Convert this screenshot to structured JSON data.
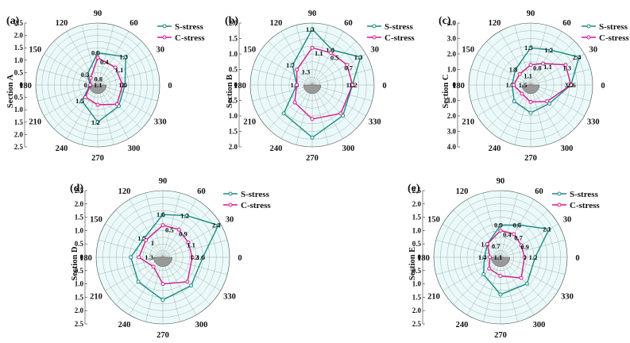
{
  "chart_data": [
    {
      "type": "polar-line",
      "panel_label": "(a)",
      "section_title": "Section A",
      "radial_range": [
        0,
        2.5
      ],
      "radial_ticks": [
        "2.5",
        "2.0",
        "1.5",
        "1.0",
        "0.5",
        "0",
        "0.5",
        "1.0",
        "1.5",
        "2.0",
        "2.5"
      ],
      "angle_ticks": [
        "0",
        "30",
        "60",
        "90",
        "120",
        "150",
        "180",
        "210",
        "240",
        "270",
        "300",
        "330"
      ],
      "legend": [
        "S-stress",
        "C-stress"
      ],
      "series": [
        {
          "name": "S-stress",
          "points": [
            [
              0,
              1.1
            ],
            [
              45,
              1.6
            ],
            [
              90,
              1.3
            ],
            [
              135,
              0.6
            ],
            [
              180,
              0.3
            ],
            [
              225,
              0.9
            ],
            [
              270,
              1.5
            ],
            [
              315,
              1.2
            ]
          ],
          "labels": [
            "1.6",
            "1.3",
            "0.6",
            "0.3",
            "0.9",
            "1.5",
            "1.2"
          ]
        },
        {
          "name": "C-stress",
          "points": [
            [
              0,
              1.0
            ],
            [
              45,
              1.0
            ],
            [
              90,
              1.1
            ],
            [
              135,
              0.4
            ],
            [
              180,
              0.3
            ],
            [
              225,
              0.7
            ],
            [
              270,
              0.8
            ],
            [
              315,
              1.1
            ]
          ],
          "labels": [
            "1",
            "1.1",
            "0.4",
            "0.8",
            "1.1"
          ]
        }
      ]
    },
    {
      "type": "polar-line",
      "panel_label": "(b)",
      "section_title": "Section B",
      "radial_range": [
        0,
        2.0
      ],
      "radial_ticks": [
        "2.0",
        "1.5",
        "1.0",
        "0.5",
        "0",
        "0.5",
        "1.0",
        "1.5",
        "2.0"
      ],
      "angle_ticks": [
        "0",
        "30",
        "60",
        "90",
        "120",
        "150",
        "180",
        "210",
        "240",
        "270",
        "300",
        "330"
      ],
      "legend": [
        "S-stress",
        "C-stress"
      ],
      "series": [
        {
          "name": "S-stress",
          "points": [
            [
              0,
              1.3
            ],
            [
              30,
              1.8
            ],
            [
              60,
              1.3
            ],
            [
              90,
              1.8
            ],
            [
              135,
              0.9
            ],
            [
              180,
              0.5
            ],
            [
              225,
              1.3
            ],
            [
              270,
              1.7
            ],
            [
              315,
              1.4
            ]
          ],
          "labels": [
            "1.8",
            "1.3",
            "1.8",
            "1.3",
            "1.7",
            "1.4"
          ]
        },
        {
          "name": "C-stress",
          "points": [
            [
              0,
              1.3
            ],
            [
              30,
              1.3
            ],
            [
              60,
              1.2
            ],
            [
              90,
              1.2
            ],
            [
              135,
              0.7
            ],
            [
              180,
              0.5
            ],
            [
              225,
              0.8
            ],
            [
              270,
              1.1
            ],
            [
              315,
              1.3
            ]
          ],
          "labels": [
            "1.2",
            "0.7",
            "0.5",
            "1.1",
            "1.3"
          ]
        }
      ]
    },
    {
      "type": "polar-line",
      "panel_label": "(c)",
      "section_title": "Section C",
      "radial_range": [
        0,
        4.0
      ],
      "radial_ticks": [
        "4.0",
        "3.0",
        "2.0",
        "1.0",
        "0",
        "1.0",
        "2.0",
        "3.0",
        "4.0"
      ],
      "angle_ticks": [
        "0",
        "30",
        "60",
        "90",
        "120",
        "150",
        "180",
        "210",
        "240",
        "270",
        "300",
        "330"
      ],
      "legend": [
        "S-stress",
        "C-stress"
      ],
      "series": [
        {
          "name": "S-stress",
          "points": [
            [
              0,
              2.6
            ],
            [
              30,
              3.6
            ],
            [
              60,
              2.6
            ],
            [
              90,
              2.4
            ],
            [
              135,
              1.4
            ],
            [
              180,
              1.2
            ],
            [
              225,
              1.5
            ],
            [
              270,
              1.8
            ],
            [
              315,
              1.7
            ]
          ],
          "labels": [
            "3.6",
            "2.4",
            "1.2",
            "1.5",
            "1.8",
            "1.7"
          ]
        },
        {
          "name": "C-stress",
          "points": [
            [
              0,
              2.6
            ],
            [
              30,
              2.6
            ],
            [
              60,
              1.6
            ],
            [
              90,
              1.3
            ],
            [
              135,
              1.0
            ],
            [
              180,
              1.1
            ],
            [
              225,
              0.8
            ],
            [
              270,
              1.1
            ],
            [
              315,
              1.5
            ]
          ],
          "labels": [
            "2.6",
            "1.3",
            "1.1",
            "0.8",
            "1.1",
            "1.5"
          ]
        }
      ]
    },
    {
      "type": "polar-line",
      "panel_label": "(d)",
      "section_title": "Section D",
      "radial_range": [
        0,
        2.5
      ],
      "radial_ticks": [
        "2.5",
        "2.0",
        "1.5",
        "1.0",
        "0.5",
        "0",
        "0.5",
        "1.0",
        "1.5",
        "2.0",
        "2.5"
      ],
      "angle_ticks": [
        "0",
        "30",
        "60",
        "90",
        "120",
        "150",
        "180",
        "210",
        "240",
        "270",
        "300",
        "330"
      ],
      "legend": [
        "S-stress",
        "C-stress"
      ],
      "series": [
        {
          "name": "S-stress",
          "points": [
            [
              0,
              1.5
            ],
            [
              30,
              2.4
            ],
            [
              60,
              1.8
            ],
            [
              90,
              1.6
            ],
            [
              135,
              1.0
            ],
            [
              180,
              1.2
            ],
            [
              225,
              1.3
            ],
            [
              270,
              1.6
            ],
            [
              315,
              1.5
            ]
          ],
          "labels": [
            "1.6",
            "2.4",
            "1.2",
            "1.6",
            "1.5"
          ]
        },
        {
          "name": "C-stress",
          "points": [
            [
              0,
              1.1
            ],
            [
              30,
              1.1
            ],
            [
              60,
              1.2
            ],
            [
              90,
              1.2
            ],
            [
              135,
              0.9
            ],
            [
              180,
              0.9
            ],
            [
              225,
              0.5
            ],
            [
              270,
              1.0
            ],
            [
              315,
              1.3
            ]
          ],
          "labels": [
            "1.2",
            "1.1",
            "0.9",
            "0.5",
            "1",
            "1.3"
          ]
        }
      ]
    },
    {
      "type": "polar-line",
      "panel_label": "(e)",
      "section_title": "Section E",
      "radial_range": [
        0,
        2.5
      ],
      "radial_ticks": [
        "2.5",
        "2.0",
        "1.5",
        "1.0",
        "0.5",
        "0",
        "0.5",
        "1.0",
        "1.5",
        "2.0",
        "2.5"
      ],
      "angle_ticks": [
        "0",
        "30",
        "60",
        "90",
        "120",
        "150",
        "180",
        "210",
        "240",
        "270",
        "300",
        "330"
      ],
      "legend": [
        "S-stress",
        "C-stress"
      ],
      "series": [
        {
          "name": "S-stress",
          "points": [
            [
              0,
              1.3
            ],
            [
              30,
              2.1
            ],
            [
              60,
              1.4
            ],
            [
              90,
              1.2
            ],
            [
              135,
              0.7
            ],
            [
              180,
              0.6
            ],
            [
              225,
              0.9
            ],
            [
              270,
              1.4
            ],
            [
              315,
              1.4
            ]
          ],
          "labels": [
            "1.2",
            "2.1",
            "0.6",
            "0.9",
            "1.4",
            "1.4"
          ]
        },
        {
          "name": "C-stress",
          "points": [
            [
              0,
              0.9
            ],
            [
              30,
              0.9
            ],
            [
              60,
              1.0
            ],
            [
              90,
              1.0
            ],
            [
              135,
              0.7
            ],
            [
              180,
              0.4
            ],
            [
              225,
              0.6
            ],
            [
              270,
              0.7
            ],
            [
              315,
              1.1
            ]
          ],
          "labels": [
            "1",
            "0.9",
            "0.7",
            "0.4",
            "0.7",
            "1.1"
          ]
        }
      ]
    }
  ],
  "colors": {
    "s_stress": "#1a8a84",
    "c_stress": "#d01c8b",
    "grid_fill": "#eafafa",
    "shade": "#999999"
  }
}
